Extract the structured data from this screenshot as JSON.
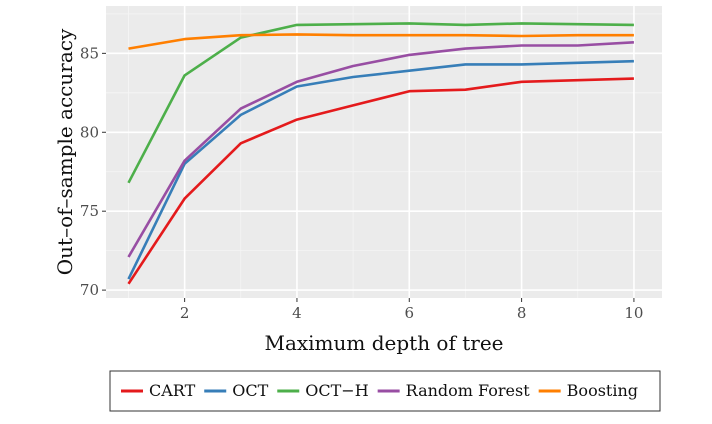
{
  "chart_data": {
    "type": "line",
    "title": "",
    "xlabel": "Maximum depth of tree",
    "ylabel": "Out–of–sample accuracy",
    "xlim": [
      0.6,
      10.5
    ],
    "ylim": [
      69.5,
      88.0
    ],
    "x": [
      1,
      2,
      3,
      4,
      5,
      6,
      7,
      8,
      9,
      10
    ],
    "xticks": [
      2,
      4,
      6,
      8,
      10
    ],
    "yticks": [
      70,
      75,
      80,
      85
    ],
    "grid": true,
    "legend_position": "bottom",
    "series": [
      {
        "name": "CART",
        "color": "#e41a1c",
        "values": [
          70.4,
          75.8,
          79.3,
          80.8,
          81.7,
          82.6,
          82.7,
          83.2,
          83.3,
          83.4
        ]
      },
      {
        "name": "OCT",
        "color": "#377eb8",
        "values": [
          70.7,
          78.0,
          81.1,
          82.9,
          83.5,
          83.9,
          84.3,
          84.3,
          84.4,
          84.5
        ]
      },
      {
        "name": "OCT−H",
        "color": "#4daf4a",
        "values": [
          76.8,
          83.6,
          86.0,
          86.8,
          86.85,
          86.9,
          86.8,
          86.9,
          86.85,
          86.8
        ]
      },
      {
        "name": "Random Forest",
        "color": "#984ea3",
        "values": [
          72.1,
          78.2,
          81.5,
          83.2,
          84.2,
          84.9,
          85.3,
          85.5,
          85.5,
          85.7
        ]
      },
      {
        "name": "Boosting",
        "color": "#ff7f00",
        "values": [
          85.3,
          85.9,
          86.15,
          86.2,
          86.15,
          86.15,
          86.15,
          86.1,
          86.15,
          86.15
        ]
      }
    ]
  }
}
